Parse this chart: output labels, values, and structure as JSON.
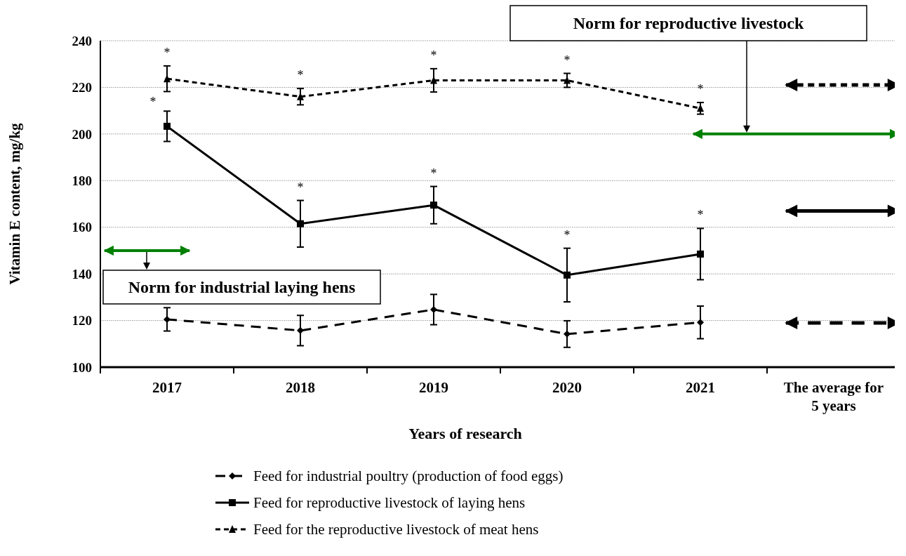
{
  "chart_data": {
    "type": "line",
    "xlabel": "Years of research",
    "ylabel": "Vitamin E content, mg/kg",
    "categories": [
      "2017",
      "2018",
      "2019",
      "2020",
      "2021",
      "The average for 5 years"
    ],
    "ylim": [
      100,
      240
    ],
    "yticks": [
      100,
      120,
      140,
      160,
      180,
      200,
      220,
      240
    ],
    "grid": "y",
    "legend": "bottom",
    "series": [
      {
        "name": "Feed for industrial poultry (production of food eggs)",
        "color": "#000000",
        "marker": "diamond",
        "line_style": "long-dashed",
        "values": [
          120.5,
          115.7,
          124.7,
          114.2,
          119.2,
          null
        ],
        "errors": [
          5,
          6.5,
          6.5,
          5.7,
          7,
          null
        ]
      },
      {
        "name": "Feed for reproductive livestock of laying hens",
        "color": "#000000",
        "marker": "square",
        "line_style": "solid",
        "values": [
          203.3,
          161.5,
          169.5,
          139.5,
          148.5,
          null
        ],
        "errors": [
          6.5,
          10,
          8,
          11.5,
          11,
          null
        ]
      },
      {
        "name": "Feed for the reproductive livestock of meat hens",
        "color": "#000000",
        "marker": "triangle",
        "line_style": "dashed",
        "values": [
          223.7,
          216,
          223,
          223,
          211,
          null
        ],
        "errors": [
          5.5,
          3.5,
          5,
          3,
          2.5,
          null
        ]
      }
    ],
    "ref_lines": [
      {
        "axis": "y",
        "value": 200,
        "label": "Norm for reproductive livestock",
        "color": "#008000"
      },
      {
        "axis": "y",
        "value": 150,
        "label": "Norm for industrial laying hens",
        "color": "#008000"
      },
      {
        "axis": "y",
        "value": 119,
        "color": "#000000",
        "line_style": "long-dashed"
      },
      {
        "axis": "y",
        "value": 167,
        "color": "#000000",
        "line_style": "solid"
      },
      {
        "axis": "y",
        "value": 221,
        "color": "#000000",
        "line_style": "dashed"
      }
    ],
    "annotations": [
      "*",
      "*",
      "*",
      "*",
      "*",
      "*",
      "*",
      "*",
      "*",
      "*"
    ]
  }
}
